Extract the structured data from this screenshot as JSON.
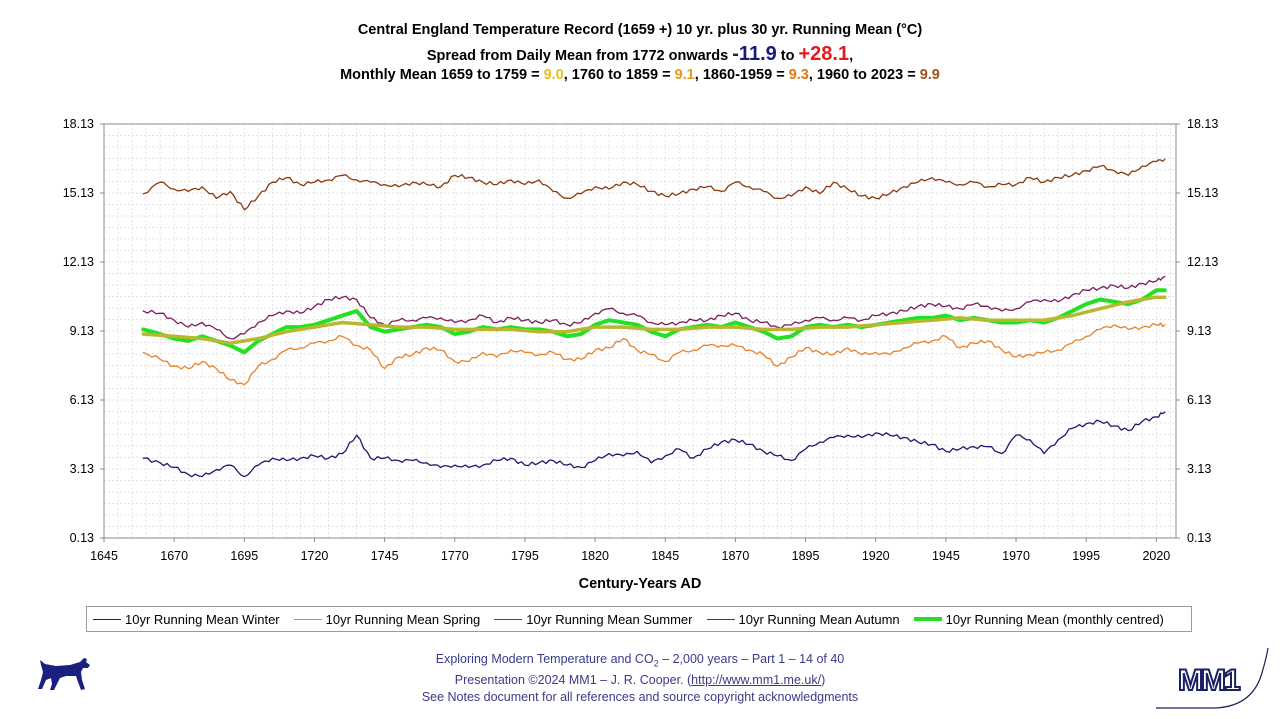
{
  "title": {
    "line1": "Central England Temperature Record (1659 +) 10 yr. plus 30 yr. Running Mean (°C)",
    "line2_a": "Spread from Daily Mean from 1772 onwards ",
    "line2_min": "-11.9",
    "line2_to": " to ",
    "line2_max": "+28.1",
    "line2_end": ",",
    "line3_a": "Monthly Mean 1659 to 1759 = ",
    "line3_v1": "9.0",
    "line3_b": ", 1760 to 1859 = ",
    "line3_v2": "9.1",
    "line3_c": ", 1860-1959 = ",
    "line3_v3": "9.3",
    "line3_d": ", 1960 to 2023 = ",
    "line3_v4": "9.9"
  },
  "chart_data": {
    "type": "line",
    "xlabel": "Century-Years AD",
    "ylabel": "",
    "xlim": [
      1645,
      2027
    ],
    "ylim": [
      0.13,
      18.13
    ],
    "x_ticks": [
      1645,
      1670,
      1695,
      1720,
      1745,
      1770,
      1795,
      1820,
      1845,
      1870,
      1895,
      1920,
      1945,
      1970,
      1995,
      2020
    ],
    "y_ticks": [
      0.13,
      3.13,
      6.13,
      9.13,
      12.13,
      15.13,
      18.13
    ],
    "y_tick_labels": [
      "0.13",
      "3.13",
      "6.13",
      "9.13",
      "12.13",
      "15.13",
      "18.13"
    ],
    "grid": true,
    "legend_position": "bottom",
    "series": [
      {
        "name": "10yr Running Mean Winter",
        "color": "#1a1a6e",
        "width": 1.3,
        "x": [
          1659,
          1665,
          1670,
          1675,
          1680,
          1685,
          1690,
          1695,
          1700,
          1705,
          1710,
          1715,
          1720,
          1725,
          1730,
          1735,
          1740,
          1745,
          1750,
          1755,
          1760,
          1765,
          1770,
          1775,
          1780,
          1785,
          1790,
          1795,
          1800,
          1805,
          1810,
          1815,
          1820,
          1825,
          1830,
          1835,
          1840,
          1845,
          1850,
          1855,
          1860,
          1865,
          1870,
          1875,
          1880,
          1885,
          1890,
          1895,
          1900,
          1905,
          1910,
          1915,
          1920,
          1925,
          1930,
          1935,
          1940,
          1945,
          1950,
          1955,
          1960,
          1965,
          1970,
          1975,
          1980,
          1985,
          1990,
          1995,
          2000,
          2005,
          2010,
          2015,
          2020,
          2023
        ],
        "values": [
          3.6,
          3.4,
          3.2,
          2.9,
          2.8,
          3.1,
          3.3,
          2.8,
          3.3,
          3.6,
          3.5,
          3.6,
          3.7,
          3.6,
          3.8,
          4.6,
          3.6,
          3.6,
          3.5,
          3.5,
          3.4,
          3.2,
          3.3,
          3.2,
          3.3,
          3.5,
          3.6,
          3.3,
          3.4,
          3.5,
          3.3,
          3.2,
          3.5,
          3.8,
          3.7,
          3.9,
          3.4,
          3.7,
          4.0,
          3.6,
          4.0,
          4.3,
          4.4,
          4.2,
          3.9,
          3.7,
          3.5,
          4.0,
          4.3,
          4.5,
          4.6,
          4.5,
          4.7,
          4.6,
          4.5,
          4.3,
          4.2,
          3.9,
          4.0,
          4.1,
          4.1,
          3.8,
          4.6,
          4.4,
          3.8,
          4.4,
          4.9,
          5.1,
          5.2,
          5.0,
          4.8,
          5.2,
          5.4,
          5.6
        ]
      },
      {
        "name": "10yr Running Mean Spring",
        "color": "#e8822a",
        "width": 1.3,
        "x": [
          1659,
          1665,
          1670,
          1675,
          1680,
          1685,
          1690,
          1695,
          1700,
          1705,
          1710,
          1715,
          1720,
          1725,
          1730,
          1735,
          1740,
          1745,
          1750,
          1755,
          1760,
          1765,
          1770,
          1775,
          1780,
          1785,
          1790,
          1795,
          1800,
          1805,
          1810,
          1815,
          1820,
          1825,
          1830,
          1835,
          1840,
          1845,
          1850,
          1855,
          1860,
          1865,
          1870,
          1875,
          1880,
          1885,
          1890,
          1895,
          1900,
          1905,
          1910,
          1915,
          1920,
          1925,
          1930,
          1935,
          1940,
          1945,
          1950,
          1955,
          1960,
          1965,
          1970,
          1975,
          1980,
          1985,
          1990,
          1995,
          2000,
          2005,
          2010,
          2015,
          2020,
          2023
        ],
        "values": [
          8.2,
          7.9,
          7.6,
          7.5,
          7.8,
          7.5,
          7.0,
          6.8,
          7.6,
          7.9,
          8.3,
          8.4,
          8.6,
          8.7,
          8.9,
          8.5,
          8.3,
          7.5,
          8.0,
          8.1,
          8.4,
          8.3,
          7.8,
          7.8,
          8.2,
          8.0,
          8.3,
          8.2,
          8.1,
          8.2,
          7.9,
          7.9,
          8.3,
          8.4,
          8.8,
          8.3,
          8.1,
          7.8,
          8.2,
          8.3,
          8.5,
          8.5,
          8.5,
          8.3,
          8.1,
          7.6,
          8.0,
          8.4,
          8.2,
          8.1,
          8.4,
          8.1,
          8.2,
          8.1,
          8.4,
          8.6,
          8.7,
          8.9,
          8.4,
          8.6,
          8.7,
          8.3,
          8.0,
          8.1,
          8.2,
          8.3,
          8.6,
          8.9,
          9.2,
          9.4,
          9.2,
          9.3,
          9.4,
          9.4
        ]
      },
      {
        "name": "10yr Running Mean Summer",
        "color": "#8b3a10",
        "width": 1.3,
        "x": [
          1659,
          1665,
          1670,
          1675,
          1680,
          1685,
          1690,
          1695,
          1700,
          1705,
          1710,
          1715,
          1720,
          1725,
          1730,
          1735,
          1740,
          1745,
          1750,
          1755,
          1760,
          1765,
          1770,
          1775,
          1780,
          1785,
          1790,
          1795,
          1800,
          1805,
          1810,
          1815,
          1820,
          1825,
          1830,
          1835,
          1840,
          1845,
          1850,
          1855,
          1860,
          1865,
          1870,
          1875,
          1880,
          1885,
          1890,
          1895,
          1900,
          1905,
          1910,
          1915,
          1920,
          1925,
          1930,
          1935,
          1940,
          1945,
          1950,
          1955,
          1960,
          1965,
          1970,
          1975,
          1980,
          1985,
          1990,
          1995,
          2000,
          2005,
          2010,
          2015,
          2020,
          2023
        ],
        "values": [
          15.1,
          15.6,
          15.3,
          15.2,
          15.4,
          14.9,
          15.2,
          14.4,
          15.0,
          15.6,
          15.8,
          15.5,
          15.6,
          15.7,
          15.9,
          15.7,
          15.6,
          15.5,
          15.4,
          15.6,
          15.5,
          15.4,
          15.9,
          15.8,
          15.6,
          15.5,
          15.7,
          15.5,
          15.7,
          15.2,
          14.9,
          15.1,
          15.4,
          15.3,
          15.6,
          15.5,
          15.2,
          15.0,
          15.1,
          15.3,
          15.4,
          15.2,
          15.6,
          15.4,
          15.2,
          14.9,
          15.0,
          15.4,
          15.1,
          15.6,
          15.3,
          15.0,
          14.9,
          15.1,
          15.4,
          15.6,
          15.8,
          15.6,
          15.5,
          15.6,
          15.4,
          15.5,
          15.5,
          15.8,
          15.6,
          15.8,
          15.9,
          16.1,
          16.3,
          16.1,
          15.9,
          16.3,
          16.5,
          16.6
        ]
      },
      {
        "name": "10yr Running Mean Autumn",
        "color": "#7a1e5a",
        "width": 1.3,
        "x": [
          1659,
          1665,
          1670,
          1675,
          1680,
          1685,
          1690,
          1695,
          1700,
          1705,
          1710,
          1715,
          1720,
          1725,
          1730,
          1735,
          1740,
          1745,
          1750,
          1755,
          1760,
          1765,
          1770,
          1775,
          1780,
          1785,
          1790,
          1795,
          1800,
          1805,
          1810,
          1815,
          1820,
          1825,
          1830,
          1835,
          1840,
          1845,
          1850,
          1855,
          1860,
          1865,
          1870,
          1875,
          1880,
          1885,
          1890,
          1895,
          1900,
          1905,
          1910,
          1915,
          1920,
          1925,
          1930,
          1935,
          1940,
          1945,
          1950,
          1955,
          1960,
          1965,
          1970,
          1975,
          1980,
          1985,
          1990,
          1995,
          2000,
          2005,
          2010,
          2015,
          2020,
          2023
        ],
        "values": [
          10.0,
          9.9,
          9.6,
          9.3,
          9.5,
          9.2,
          8.8,
          9.0,
          9.5,
          9.8,
          10.0,
          9.9,
          10.2,
          10.5,
          10.6,
          10.5,
          9.7,
          9.4,
          9.6,
          9.6,
          9.7,
          9.7,
          9.5,
          9.6,
          9.8,
          9.5,
          9.7,
          9.6,
          9.5,
          9.6,
          9.4,
          9.5,
          9.9,
          10.1,
          9.9,
          9.8,
          9.5,
          9.4,
          9.5,
          9.6,
          9.6,
          9.8,
          9.9,
          9.6,
          9.5,
          9.3,
          9.4,
          9.6,
          9.7,
          9.6,
          9.7,
          9.6,
          9.8,
          9.9,
          10.0,
          10.2,
          10.3,
          10.2,
          10.1,
          10.3,
          10.2,
          10.0,
          10.1,
          10.4,
          10.5,
          10.4,
          10.7,
          10.9,
          11.0,
          11.1,
          11.0,
          11.2,
          11.3,
          11.5
        ]
      },
      {
        "name": "10yr Running Mean (monthly centred)",
        "color": "#22e022",
        "width": 4,
        "x": [
          1659,
          1665,
          1670,
          1675,
          1680,
          1685,
          1690,
          1695,
          1700,
          1705,
          1710,
          1715,
          1720,
          1725,
          1730,
          1735,
          1740,
          1745,
          1750,
          1755,
          1760,
          1765,
          1770,
          1775,
          1780,
          1785,
          1790,
          1795,
          1800,
          1805,
          1810,
          1815,
          1820,
          1825,
          1830,
          1835,
          1840,
          1845,
          1850,
          1855,
          1860,
          1865,
          1870,
          1875,
          1880,
          1885,
          1890,
          1895,
          1900,
          1905,
          1910,
          1915,
          1920,
          1925,
          1930,
          1935,
          1940,
          1945,
          1950,
          1955,
          1960,
          1965,
          1970,
          1975,
          1980,
          1985,
          1990,
          1995,
          2000,
          2005,
          2010,
          2015,
          2020,
          2023
        ],
        "values": [
          9.2,
          9.0,
          8.8,
          8.7,
          8.9,
          8.7,
          8.5,
          8.2,
          8.7,
          9.0,
          9.3,
          9.3,
          9.4,
          9.6,
          9.8,
          10.0,
          9.3,
          9.1,
          9.2,
          9.3,
          9.4,
          9.3,
          9.0,
          9.1,
          9.3,
          9.2,
          9.3,
          9.2,
          9.2,
          9.1,
          8.9,
          9.0,
          9.4,
          9.6,
          9.5,
          9.4,
          9.1,
          8.9,
          9.2,
          9.3,
          9.4,
          9.3,
          9.5,
          9.3,
          9.1,
          8.8,
          8.9,
          9.3,
          9.4,
          9.3,
          9.4,
          9.3,
          9.4,
          9.5,
          9.6,
          9.7,
          9.7,
          9.8,
          9.6,
          9.7,
          9.6,
          9.5,
          9.5,
          9.6,
          9.5,
          9.7,
          10.0,
          10.3,
          10.5,
          10.4,
          10.3,
          10.5,
          10.9,
          10.9
        ]
      },
      {
        "name": "30yr Running Mean",
        "color": "#b8b830",
        "width": 3.5,
        "x": [
          1659,
          1670,
          1680,
          1690,
          1700,
          1710,
          1720,
          1730,
          1740,
          1750,
          1760,
          1770,
          1780,
          1790,
          1800,
          1810,
          1820,
          1830,
          1840,
          1850,
          1860,
          1870,
          1880,
          1890,
          1900,
          1910,
          1920,
          1930,
          1940,
          1950,
          1960,
          1970,
          1980,
          1990,
          2000,
          2010,
          2020,
          2023
        ],
        "values": [
          9.0,
          8.9,
          8.8,
          8.6,
          8.8,
          9.1,
          9.3,
          9.5,
          9.4,
          9.3,
          9.3,
          9.2,
          9.2,
          9.2,
          9.1,
          9.1,
          9.3,
          9.3,
          9.2,
          9.2,
          9.3,
          9.3,
          9.2,
          9.2,
          9.3,
          9.3,
          9.4,
          9.5,
          9.6,
          9.7,
          9.6,
          9.6,
          9.6,
          9.8,
          10.1,
          10.4,
          10.6,
          10.6
        ]
      }
    ]
  },
  "legend": {
    "winter": "10yr Running Mean Winter",
    "spring": "10yr Running Mean Spring",
    "summer": "10yr Running Mean Summer",
    "autumn": "10yr Running Mean Autumn",
    "monthly": "10yr Running Mean (monthly centred)"
  },
  "footer": {
    "line1_a": "Exploring Modern Temperature and CO",
    "line1_sub": "2",
    "line1_b": " – 2,000 years – Part 1 – 14 of 40",
    "line2_a": "Presentation ©2024 MM1 – J. R. Cooper. (",
    "line2_link": "http://www.mm1.me.uk/",
    "line2_b": ")",
    "line3": "See Notes document for all references and source copyright acknowledgments"
  },
  "logo": {
    "text": "MM1"
  }
}
